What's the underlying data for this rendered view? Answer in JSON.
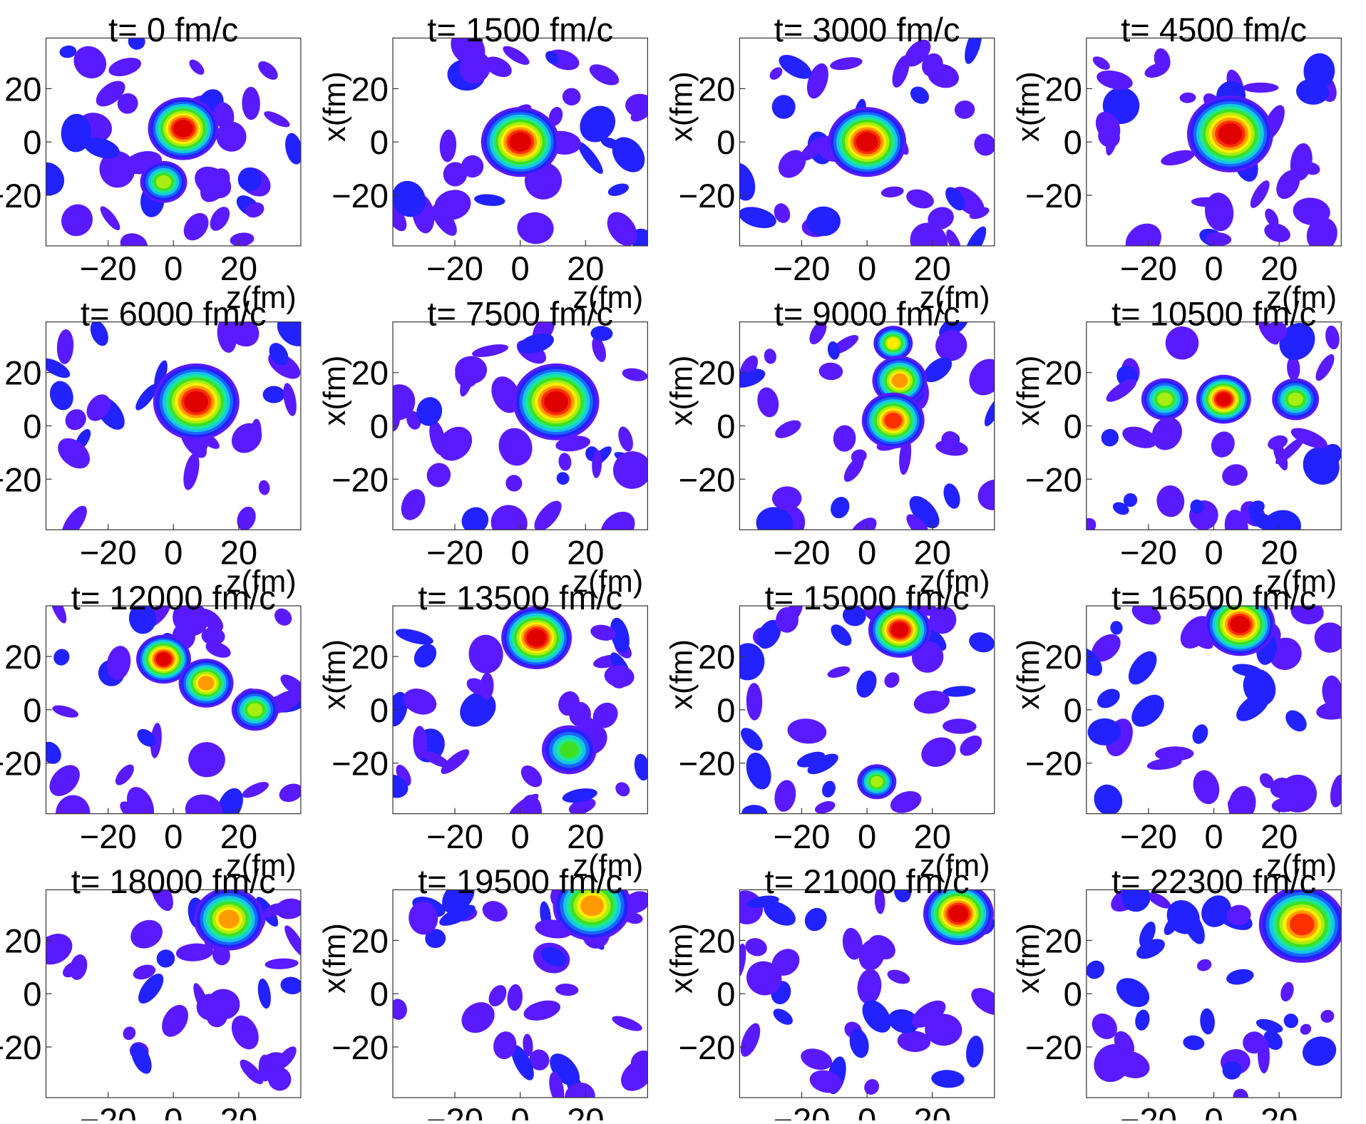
{
  "chart_data": {
    "type": "heatmap",
    "layout": {
      "rows": 4,
      "cols": 4
    },
    "xlabel": "z(fm)",
    "ylabel": "x(fm)",
    "xlim": [
      -39,
      39
    ],
    "ylim": [
      -39,
      39
    ],
    "xticks": [
      -20,
      0,
      20
    ],
    "yticks": [
      -20,
      0,
      20
    ],
    "xtick_labels": [
      "−20",
      "0",
      "20"
    ],
    "ytick_labels": [
      "−20",
      "0",
      "20"
    ],
    "colormap": [
      "#5a1aff",
      "#2222ff",
      "#1a66ff",
      "#14c8e6",
      "#1ee896",
      "#3ee020",
      "#a8ee12",
      "#ffee00",
      "#ff9a00",
      "#ff3000",
      "#e00000"
    ],
    "panels": [
      {
        "title": "t= 0 fm/c",
        "hotspots": [
          {
            "x": 3,
            "y": 5,
            "peak": 1.0,
            "r": 9
          },
          {
            "x": -3,
            "y": -15,
            "peak": 0.62,
            "r": 6
          }
        ]
      },
      {
        "title": "t= 1500 fm/c",
        "hotspots": [
          {
            "x": 0,
            "y": 0,
            "peak": 1.0,
            "r": 10
          }
        ]
      },
      {
        "title": "t= 3000 fm/c",
        "hotspots": [
          {
            "x": 0,
            "y": 0,
            "peak": 1.0,
            "r": 10
          }
        ]
      },
      {
        "title": "t= 4500 fm/c",
        "hotspots": [
          {
            "x": 5,
            "y": 3,
            "peak": 1.0,
            "r": 11
          }
        ]
      },
      {
        "title": "t= 6000 fm/c",
        "hotspots": [
          {
            "x": 7,
            "y": 9,
            "peak": 1.0,
            "r": 11
          }
        ]
      },
      {
        "title": "t= 7500 fm/c",
        "hotspots": [
          {
            "x": 11,
            "y": 9,
            "peak": 1.0,
            "r": 11
          }
        ]
      },
      {
        "title": "t= 9000 fm/c",
        "hotspots": [
          {
            "x": 8,
            "y": 31,
            "peak": 0.65,
            "r": 5
          },
          {
            "x": 10,
            "y": 17,
            "peak": 0.8,
            "r": 7
          },
          {
            "x": 8,
            "y": 2,
            "peak": 0.9,
            "r": 8
          }
        ]
      },
      {
        "title": "t= 10500 fm/c",
        "hotspots": [
          {
            "x": 3,
            "y": 10,
            "peak": 1.0,
            "r": 7
          },
          {
            "x": -15,
            "y": 10,
            "peak": 0.6,
            "r": 6
          },
          {
            "x": 25,
            "y": 10,
            "peak": 0.6,
            "r": 6
          }
        ]
      },
      {
        "title": "t= 12000 fm/c",
        "hotspots": [
          {
            "x": -3,
            "y": 19,
            "peak": 1.0,
            "r": 7
          },
          {
            "x": 10,
            "y": 10,
            "peak": 0.75,
            "r": 7
          },
          {
            "x": 25,
            "y": 0,
            "peak": 0.6,
            "r": 6
          }
        ]
      },
      {
        "title": "t= 13500 fm/c",
        "hotspots": [
          {
            "x": 5,
            "y": 27,
            "peak": 0.95,
            "r": 9
          },
          {
            "x": 15,
            "y": -15,
            "peak": 0.5,
            "r": 7
          }
        ]
      },
      {
        "title": "t= 15000 fm/c",
        "hotspots": [
          {
            "x": 10,
            "y": 30,
            "peak": 1.0,
            "r": 8
          },
          {
            "x": 3,
            "y": -27,
            "peak": 0.55,
            "r": 5
          }
        ]
      },
      {
        "title": "t= 16500 fm/c",
        "hotspots": [
          {
            "x": 8,
            "y": 32,
            "peak": 1.0,
            "r": 9
          }
        ]
      },
      {
        "title": "t= 18000 fm/c",
        "hotspots": [
          {
            "x": 17,
            "y": 28,
            "peak": 0.75,
            "r": 9
          }
        ]
      },
      {
        "title": "t= 19500 fm/c",
        "hotspots": [
          {
            "x": 22,
            "y": 33,
            "peak": 0.8,
            "r": 10
          }
        ]
      },
      {
        "title": "t= 21000 fm/c",
        "hotspots": [
          {
            "x": 28,
            "y": 30,
            "peak": 1.0,
            "r": 9
          }
        ]
      },
      {
        "title": "t= 22300 fm/c",
        "hotspots": [
          {
            "x": 27,
            "y": 26,
            "peak": 0.9,
            "r": 11
          }
        ]
      }
    ]
  }
}
